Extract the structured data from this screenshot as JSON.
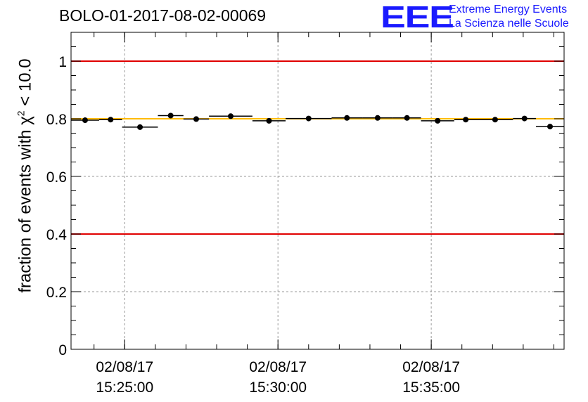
{
  "header": {
    "run_id": "BOLO-01-2017-08-02-00069"
  },
  "logo": {
    "mark": "EEE",
    "line1": "Extreme Energy Events",
    "line2": "La Scienza nelle Scuole",
    "color": "#1a1aff"
  },
  "chart_data": {
    "type": "scatter",
    "title": "BOLO-01-2017-08-02-00069",
    "ylabel": {
      "prefix": "fraction of events with",
      "symbol": "χ",
      "sup": "2",
      "suffix": " < 10.0"
    },
    "xlabel": "",
    "x_axis": "time",
    "xlim": [
      "15:23:15",
      "15:39:20"
    ],
    "ylim": [
      0,
      1.1
    ],
    "grid": true,
    "x_ticks": [
      {
        "date": "02/08/17",
        "time": "15:25:00"
      },
      {
        "date": "02/08/17",
        "time": "15:30:00"
      },
      {
        "date": "02/08/17",
        "time": "15:35:00"
      }
    ],
    "y_ticks": [
      "0",
      "0.2",
      "0.4",
      "0.6",
      "0.8",
      "1"
    ],
    "y_tick_values": [
      0,
      0.2,
      0.4,
      0.6,
      0.8,
      1.0
    ],
    "points": [
      {
        "x_start": "15:23:15",
        "x_end": "15:24:10",
        "y": 0.795
      },
      {
        "x_start": "15:24:10",
        "x_end": "15:24:55",
        "y": 0.797
      },
      {
        "x_start": "15:24:55",
        "x_end": "15:26:05",
        "y": 0.771
      },
      {
        "x_start": "15:26:05",
        "x_end": "15:26:55",
        "y": 0.811
      },
      {
        "x_start": "15:26:55",
        "x_end": "15:27:45",
        "y": 0.799
      },
      {
        "x_start": "15:27:45",
        "x_end": "15:29:10",
        "y": 0.809
      },
      {
        "x_start": "15:29:10",
        "x_end": "15:30:15",
        "y": 0.793
      },
      {
        "x_start": "15:30:15",
        "x_end": "15:31:45",
        "y": 0.801
      },
      {
        "x_start": "15:31:45",
        "x_end": "15:32:45",
        "y": 0.803
      },
      {
        "x_start": "15:32:45",
        "x_end": "15:33:45",
        "y": 0.803
      },
      {
        "x_start": "15:33:45",
        "x_end": "15:34:40",
        "y": 0.803
      },
      {
        "x_start": "15:34:40",
        "x_end": "15:35:45",
        "y": 0.793
      },
      {
        "x_start": "15:35:45",
        "x_end": "15:36:30",
        "y": 0.797
      },
      {
        "x_start": "15:36:30",
        "x_end": "15:37:40",
        "y": 0.797
      },
      {
        "x_start": "15:37:40",
        "x_end": "15:38:25",
        "y": 0.801
      },
      {
        "x_start": "15:38:25",
        "x_end": "15:39:20",
        "y": 0.773
      }
    ],
    "reference_lines": [
      {
        "y": 1.0,
        "color": "#e00000"
      },
      {
        "y": 0.4,
        "color": "#e00000"
      },
      {
        "y": 0.8,
        "color": "#ffbb00"
      }
    ],
    "colors": {
      "points": "#000000",
      "grid": "#999999"
    }
  }
}
